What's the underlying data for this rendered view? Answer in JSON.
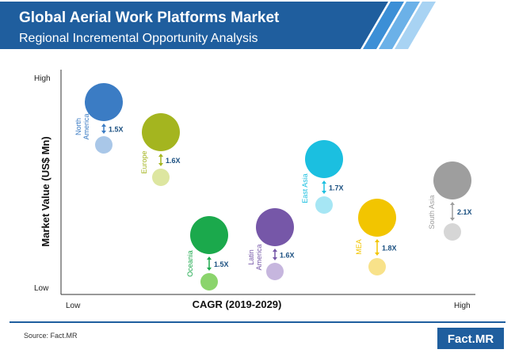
{
  "header": {
    "title": "Global Aerial Work Platforms Market",
    "subtitle": "Regional Incremental Opportunity Analysis"
  },
  "chart_data": {
    "type": "scatter",
    "xlabel": "CAGR (2019-2029)",
    "ylabel": "Market Value (US$ Mn)",
    "x_ticks": {
      "low": "Low",
      "high": "High"
    },
    "y_ticks": {
      "low": "Low",
      "high": "High"
    },
    "points": [
      {
        "name": [
          "North",
          "America"
        ],
        "multiplier": "1.5X",
        "color": "#3B7CC4",
        "light_color": "#A9C7E8"
      },
      {
        "name": [
          "Europe"
        ],
        "multiplier": "1.6X",
        "color": "#A4B51F",
        "light_color": "#DDE6A0"
      },
      {
        "name": [
          "Oceania"
        ],
        "multiplier": "1.5X",
        "color": "#1BA94C",
        "light_color": "#8BD46C"
      },
      {
        "name": [
          "Latin",
          "America"
        ],
        "multiplier": "1.6X",
        "color": "#7657A8",
        "light_color": "#C6B6DE"
      },
      {
        "name": [
          "East Asia"
        ],
        "multiplier": "1.7X",
        "color": "#1BBFE0",
        "light_color": "#A6E6F4"
      },
      {
        "name": [
          "MEA"
        ],
        "multiplier": "1.8X",
        "color": "#F2C500",
        "light_color": "#F8E28A"
      },
      {
        "name": [
          "South Asia"
        ],
        "multiplier": "2.1X",
        "color": "#9E9E9E",
        "light_color": "#D6D6D6"
      }
    ]
  },
  "footer": {
    "source": "Source: Fact.MR",
    "logo": "Fact.MR"
  },
  "colors": {
    "header_blue": "#1F5E9E",
    "text_dark": "#1A4F80"
  }
}
